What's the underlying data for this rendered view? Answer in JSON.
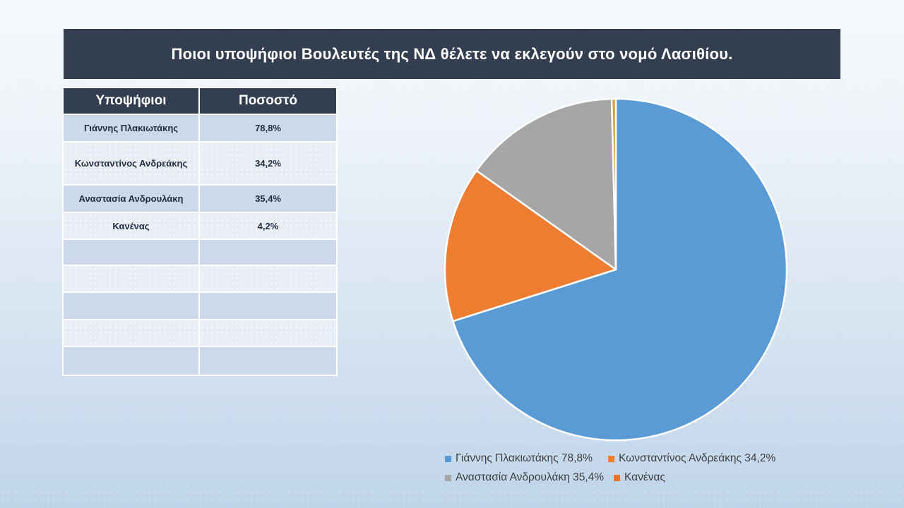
{
  "title": "Ποιοι υποψήφιοι Βουλευτές της ΝΔ θέλετε να εκλεγούν στο νομό Λασιθίου.",
  "table": {
    "headers": [
      "Υποψήφιοι",
      "Ποσοστό"
    ],
    "rows": [
      {
        "candidate": "Γιάννης Πλακιωτάκης",
        "percent": "78,8%"
      },
      {
        "candidate": "Κωνσταντίνος Ανδρεάκης",
        "percent": "34,2%"
      },
      {
        "candidate": "Αναστασία Ανδρουλάκη",
        "percent": "35,4%"
      },
      {
        "candidate": "Κανένας",
        "percent": "4,2%"
      }
    ],
    "empty_row_count": 5
  },
  "chart_data": {
    "type": "pie",
    "title": "",
    "categories": [
      "Γιάννης Πλακιωτάκης",
      "Κωνσταντίνος Ανδρεάκης",
      "Αναστασία Ανδρουλάκη",
      "Κανένας"
    ],
    "values": [
      78.8,
      34.2,
      35.4,
      4.2
    ],
    "value_unit": "%",
    "render_fractions": [
      0.7011,
      0.1472,
      0.1478,
      0.0039
    ],
    "start_angle_deg": 0,
    "direction": "clockwise",
    "legend_position": "bottom",
    "legend_labels": [
      "Γιάννης Πλακιωτάκης 78,8%",
      "Κωνσταντίνος Ανδρεάκης 34,2%",
      "Αναστασία Ανδρουλάκη 35,4%",
      "Κανένας"
    ],
    "legend_marker_colors": [
      "#5B9BD5",
      "#ED7D31",
      "#A6A6A6",
      "#E8742C"
    ],
    "slice_colors": [
      "#5B9BD5",
      "#ED7D31",
      "#A6A6A6",
      "#D9A13E"
    ]
  },
  "colors": {
    "title_bar_bg": "#333F50",
    "table_header_bg": "#333F50",
    "row_blue": "#CDD9EA",
    "row_light": "#E9EEF6",
    "cell_text": "#1F2C3F",
    "legend_text": "#404040"
  }
}
